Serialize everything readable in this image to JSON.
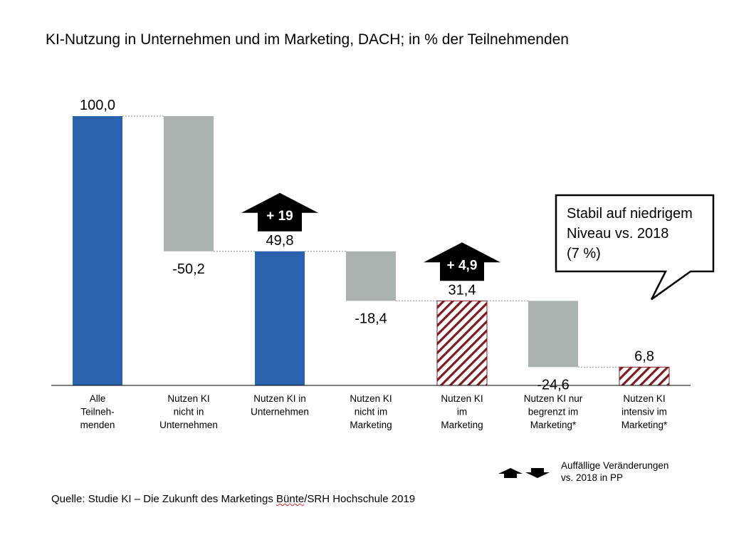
{
  "title": "KI-Nutzung in Unternehmen und im Marketing, DACH; in % der Teilnehmenden",
  "chart_data": {
    "type": "waterfall",
    "categories": [
      "Alle Teilneh-menden",
      "Nutzen KI nicht in Unternehmen",
      "Nutzen KI in Unternehmen",
      "Nutzen KI nicht im Marketing",
      "Nutzen KI im Marketing",
      "Nutzen KI nur begrenzt im Marketing*",
      "Nutzen KI intensiv im Marketing*"
    ],
    "category_lines": [
      [
        "Alle",
        "Teilneh-",
        "menden"
      ],
      [
        "Nutzen KI",
        "nicht in",
        "Unternehmen"
      ],
      [
        "Nutzen KI in",
        "Unternehmen"
      ],
      [
        "Nutzen KI",
        "nicht im",
        "Marketing"
      ],
      [
        "Nutzen KI",
        "im",
        "Marketing"
      ],
      [
        "Nutzen KI nur",
        "begrenzt im",
        "Marketing*"
      ],
      [
        "Nutzen KI",
        "intensiv im",
        "Marketing*"
      ]
    ],
    "values": [
      100.0,
      -50.2,
      49.8,
      -18.4,
      31.4,
      -24.6,
      6.8
    ],
    "bar_kinds": [
      "total",
      "delta",
      "total",
      "delta",
      "total",
      "delta",
      "total"
    ],
    "value_labels": [
      "100,0",
      "-50,2",
      "49,8",
      "-18,4",
      "31,4",
      "-24,6",
      "6,8"
    ],
    "colors": {
      "total": "#2b62ad",
      "delta": "#a9b2b1",
      "hatch_line": "#7a1c22",
      "connector": "#888888"
    },
    "hatched_bars": [
      4,
      6
    ],
    "ylim": [
      0,
      100
    ],
    "grid": false,
    "changes": [
      {
        "bar_index": 2,
        "label": "+ 19",
        "direction": "up"
      },
      {
        "bar_index": 4,
        "label": "+ 4,9",
        "direction": "up"
      }
    ],
    "callout": {
      "bar_index": 6,
      "lines": [
        "Stabil auf niedrigem",
        "Niveau vs. 2018",
        "(7 %)"
      ]
    }
  },
  "legend": {
    "icons": [
      "arrow-up-icon",
      "arrow-down-icon"
    ],
    "lines": [
      "Auffällige Veränderungen",
      "vs. 2018 in PP"
    ]
  },
  "source": {
    "prefix": "Quelle: Studie KI – Die Zukunft des Marketings ",
    "underlined": "Bünte",
    "suffix": "/SRH Hochschule 2019"
  }
}
